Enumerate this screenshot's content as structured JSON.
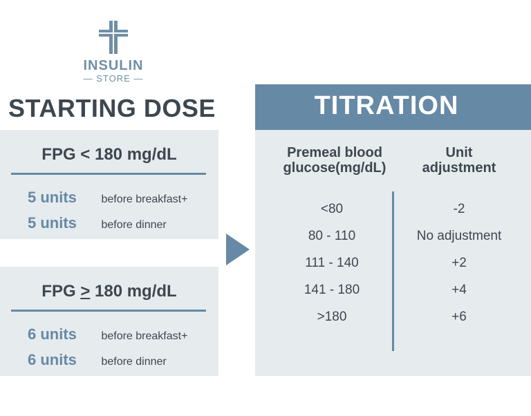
{
  "logo": {
    "name": "INSULIN",
    "sub": "— STORE —"
  },
  "starting_dose": {
    "title": "STARTING DOSE",
    "cards": [
      {
        "condition": "FPG < 180 mg/dL",
        "rows": [
          {
            "units": "5 units",
            "when": "before breakfast+"
          },
          {
            "units": "5 units",
            "when": "before dinner"
          }
        ]
      },
      {
        "condition_prefix": "FPG ",
        "condition_symbol": ">",
        "condition_suffix": " 180 mg/dL",
        "rows": [
          {
            "units": "6 units",
            "when": "before breakfast+"
          },
          {
            "units": "6 units",
            "when": "before dinner"
          }
        ]
      }
    ]
  },
  "titration": {
    "title": "TITRATION",
    "col1_line1": "Premeal blood",
    "col1_line2": "glucose(mg/dL)",
    "col2_line1": "Unit",
    "col2_line2": "adjustment",
    "rows": [
      {
        "range": "<80",
        "adjust": "-2"
      },
      {
        "range": "80 - 110",
        "adjust": "No adjustment"
      },
      {
        "range": "111 - 140",
        "adjust": "+2"
      },
      {
        "range": "141 - 180",
        "adjust": "+4"
      },
      {
        "range": ">180",
        "adjust": "+6"
      }
    ]
  },
  "colors": {
    "accent": "#6689a6",
    "panel": "#e6ebee",
    "text": "#3d4750"
  }
}
